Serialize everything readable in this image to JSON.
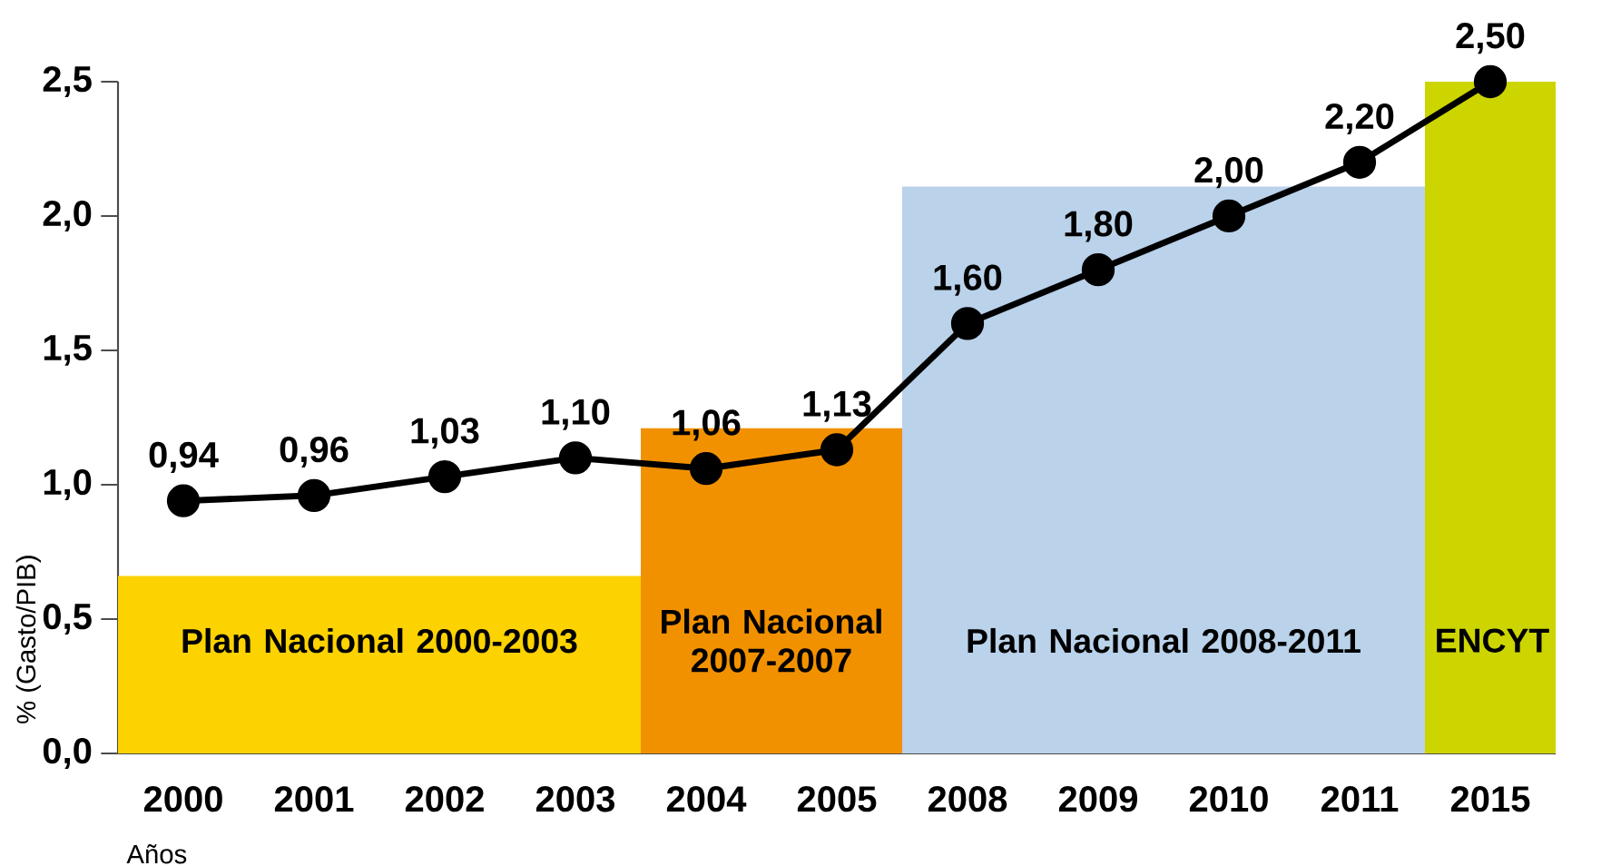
{
  "chart_data": {
    "type": "line",
    "categories": [
      "2000",
      "2001",
      "2002",
      "2003",
      "2004",
      "2005",
      "2008",
      "2009",
      "2010",
      "2011",
      "2015"
    ],
    "ylabel": "% (Gasto/PIB)",
    "xlabel": "Años",
    "ylim": [
      0,
      2.5
    ],
    "yticks": [
      {
        "value": 0,
        "label": "0,0"
      },
      {
        "value": 0.5,
        "label": "0,5"
      },
      {
        "value": 1,
        "label": "1,0"
      },
      {
        "value": 1.5,
        "label": "1,5"
      },
      {
        "value": 2,
        "label": "2,0"
      },
      {
        "value": 2.5,
        "label": "2,5"
      }
    ],
    "bands": [
      {
        "axis": "x",
        "from": "2000",
        "to": "2003",
        "label": "Plan Nacional 2000-2003",
        "color": "#fcd200"
      },
      {
        "axis": "x",
        "from": "2004",
        "to": "2005",
        "label": "Plan Nacional 2007-2007",
        "color": "#f29100"
      },
      {
        "axis": "x",
        "from": "2008",
        "to": "2011",
        "label": "Plan Nacional 2008-2011",
        "color": "#bad2ea"
      },
      {
        "axis": "x",
        "from": "2015",
        "to": "2015",
        "label": "ENCYT",
        "color": "#cdd500"
      }
    ],
    "series": [
      {
        "color": "#000000",
        "marker": "circle",
        "values": [
          0.94,
          0.96,
          1.03,
          1.1,
          1.06,
          1.13,
          1.6,
          1.8,
          2.0,
          2.2,
          2.5
        ],
        "value_labels": [
          "0,94",
          "0,96",
          "1,03",
          "1,10",
          "1,06",
          "1,13",
          "1,60",
          "1,80",
          "2,00",
          "2,20",
          "2,50"
        ]
      }
    ]
  }
}
